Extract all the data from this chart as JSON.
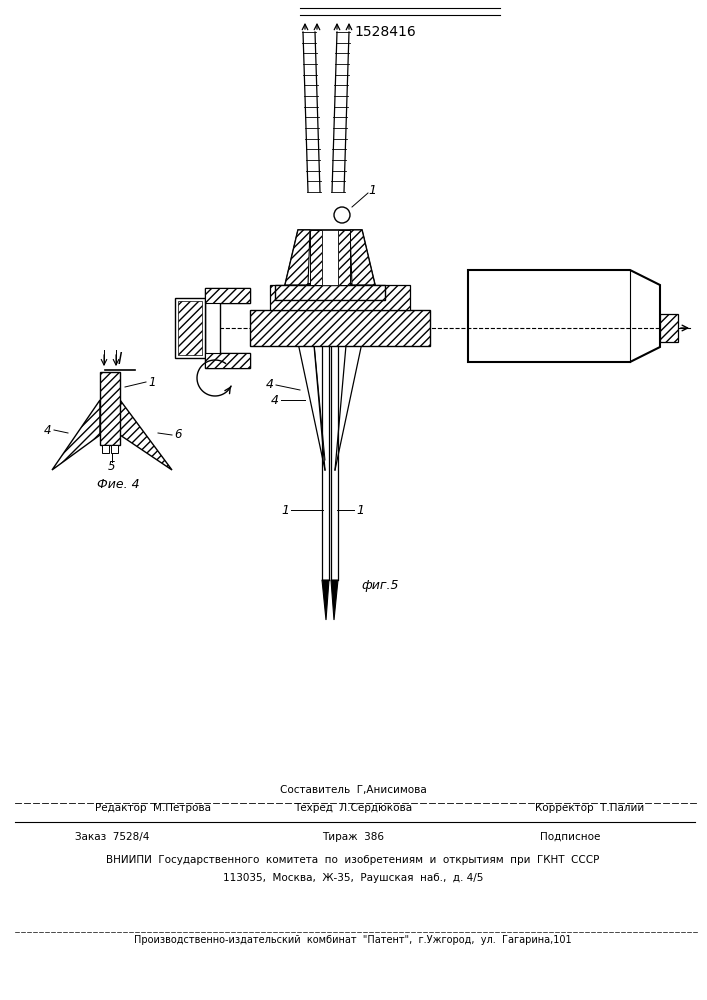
{
  "patent_number": "1528416",
  "fig4_caption": "Фие. 4",
  "fig5_caption": "фиг.5",
  "bg_color": "#ffffff",
  "line_color": "#000000",
  "footer": {
    "sestavitel": "Составитель  Г,Анисимова",
    "redaktor": "Редактор  М.Петрова",
    "tehred": "Техред  Л.Сердюкова",
    "korrektor": "Корректор  Т.Палий",
    "zakaz": "Заказ  7528/4",
    "tirazh": "Тираж  386",
    "podpisnoe": "Подписное",
    "vniipи": "ВНИИПИ  Государственного  комитета  по  изобретениям  и  открытиям  при  ГКНТ  СССР",
    "address": "113035,  Москва,  Ж-35,  Раушская  наб.,  д. 4/5",
    "kombinat": "Производственно-издательский  комбинат  \"Патент\",  г.Ужгород,  ул.  Гагарина,101"
  }
}
